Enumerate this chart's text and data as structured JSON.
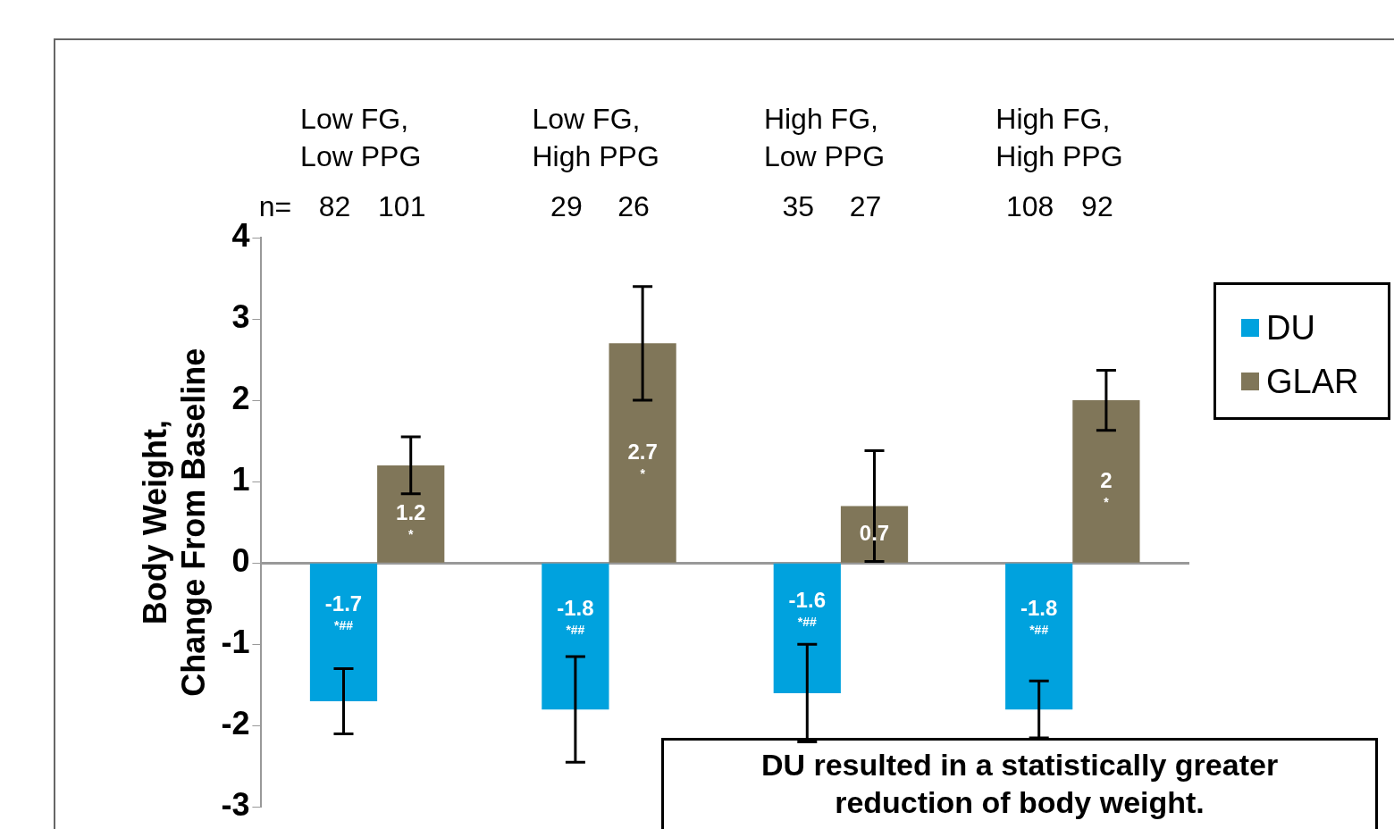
{
  "chart_data": {
    "type": "bar",
    "categories": [
      "Low FG,\nLow PPG",
      "Low FG,\nHigh PPG",
      "High FG,\nLow PPG",
      "High FG,\nHigh PPG"
    ],
    "series": [
      {
        "name": "DU",
        "color": "#00a2de",
        "values": [
          -1.7,
          -1.8,
          -1.6,
          -1.8
        ],
        "errors": [
          0.4,
          0.65,
          0.6,
          0.35
        ],
        "value_labels": [
          "-1.7\n*##",
          "-1.8\n*##",
          "-1.6\n*##",
          "-1.8\n*##"
        ]
      },
      {
        "name": "GLAR",
        "color": "#807659",
        "values": [
          1.2,
          2.7,
          0.7,
          2
        ],
        "errors": [
          0.35,
          0.7,
          0.68,
          0.37
        ],
        "value_labels": [
          "1.2\n*",
          "2.7\n*",
          "0.7",
          "2\n*"
        ]
      }
    ],
    "ylabel": "Body Weight,\nChange From Baseline",
    "ylim": [
      -3,
      4
    ],
    "yticks": [
      -3,
      -2,
      -1,
      0,
      1,
      2,
      3,
      4
    ],
    "legend": "top right",
    "annotations": [
      "n=",
      "82",
      "101",
      "29",
      "26",
      "35",
      "27",
      "108",
      "92",
      "DU resulted in a statistically greater reduction of body weight."
    ]
  }
}
